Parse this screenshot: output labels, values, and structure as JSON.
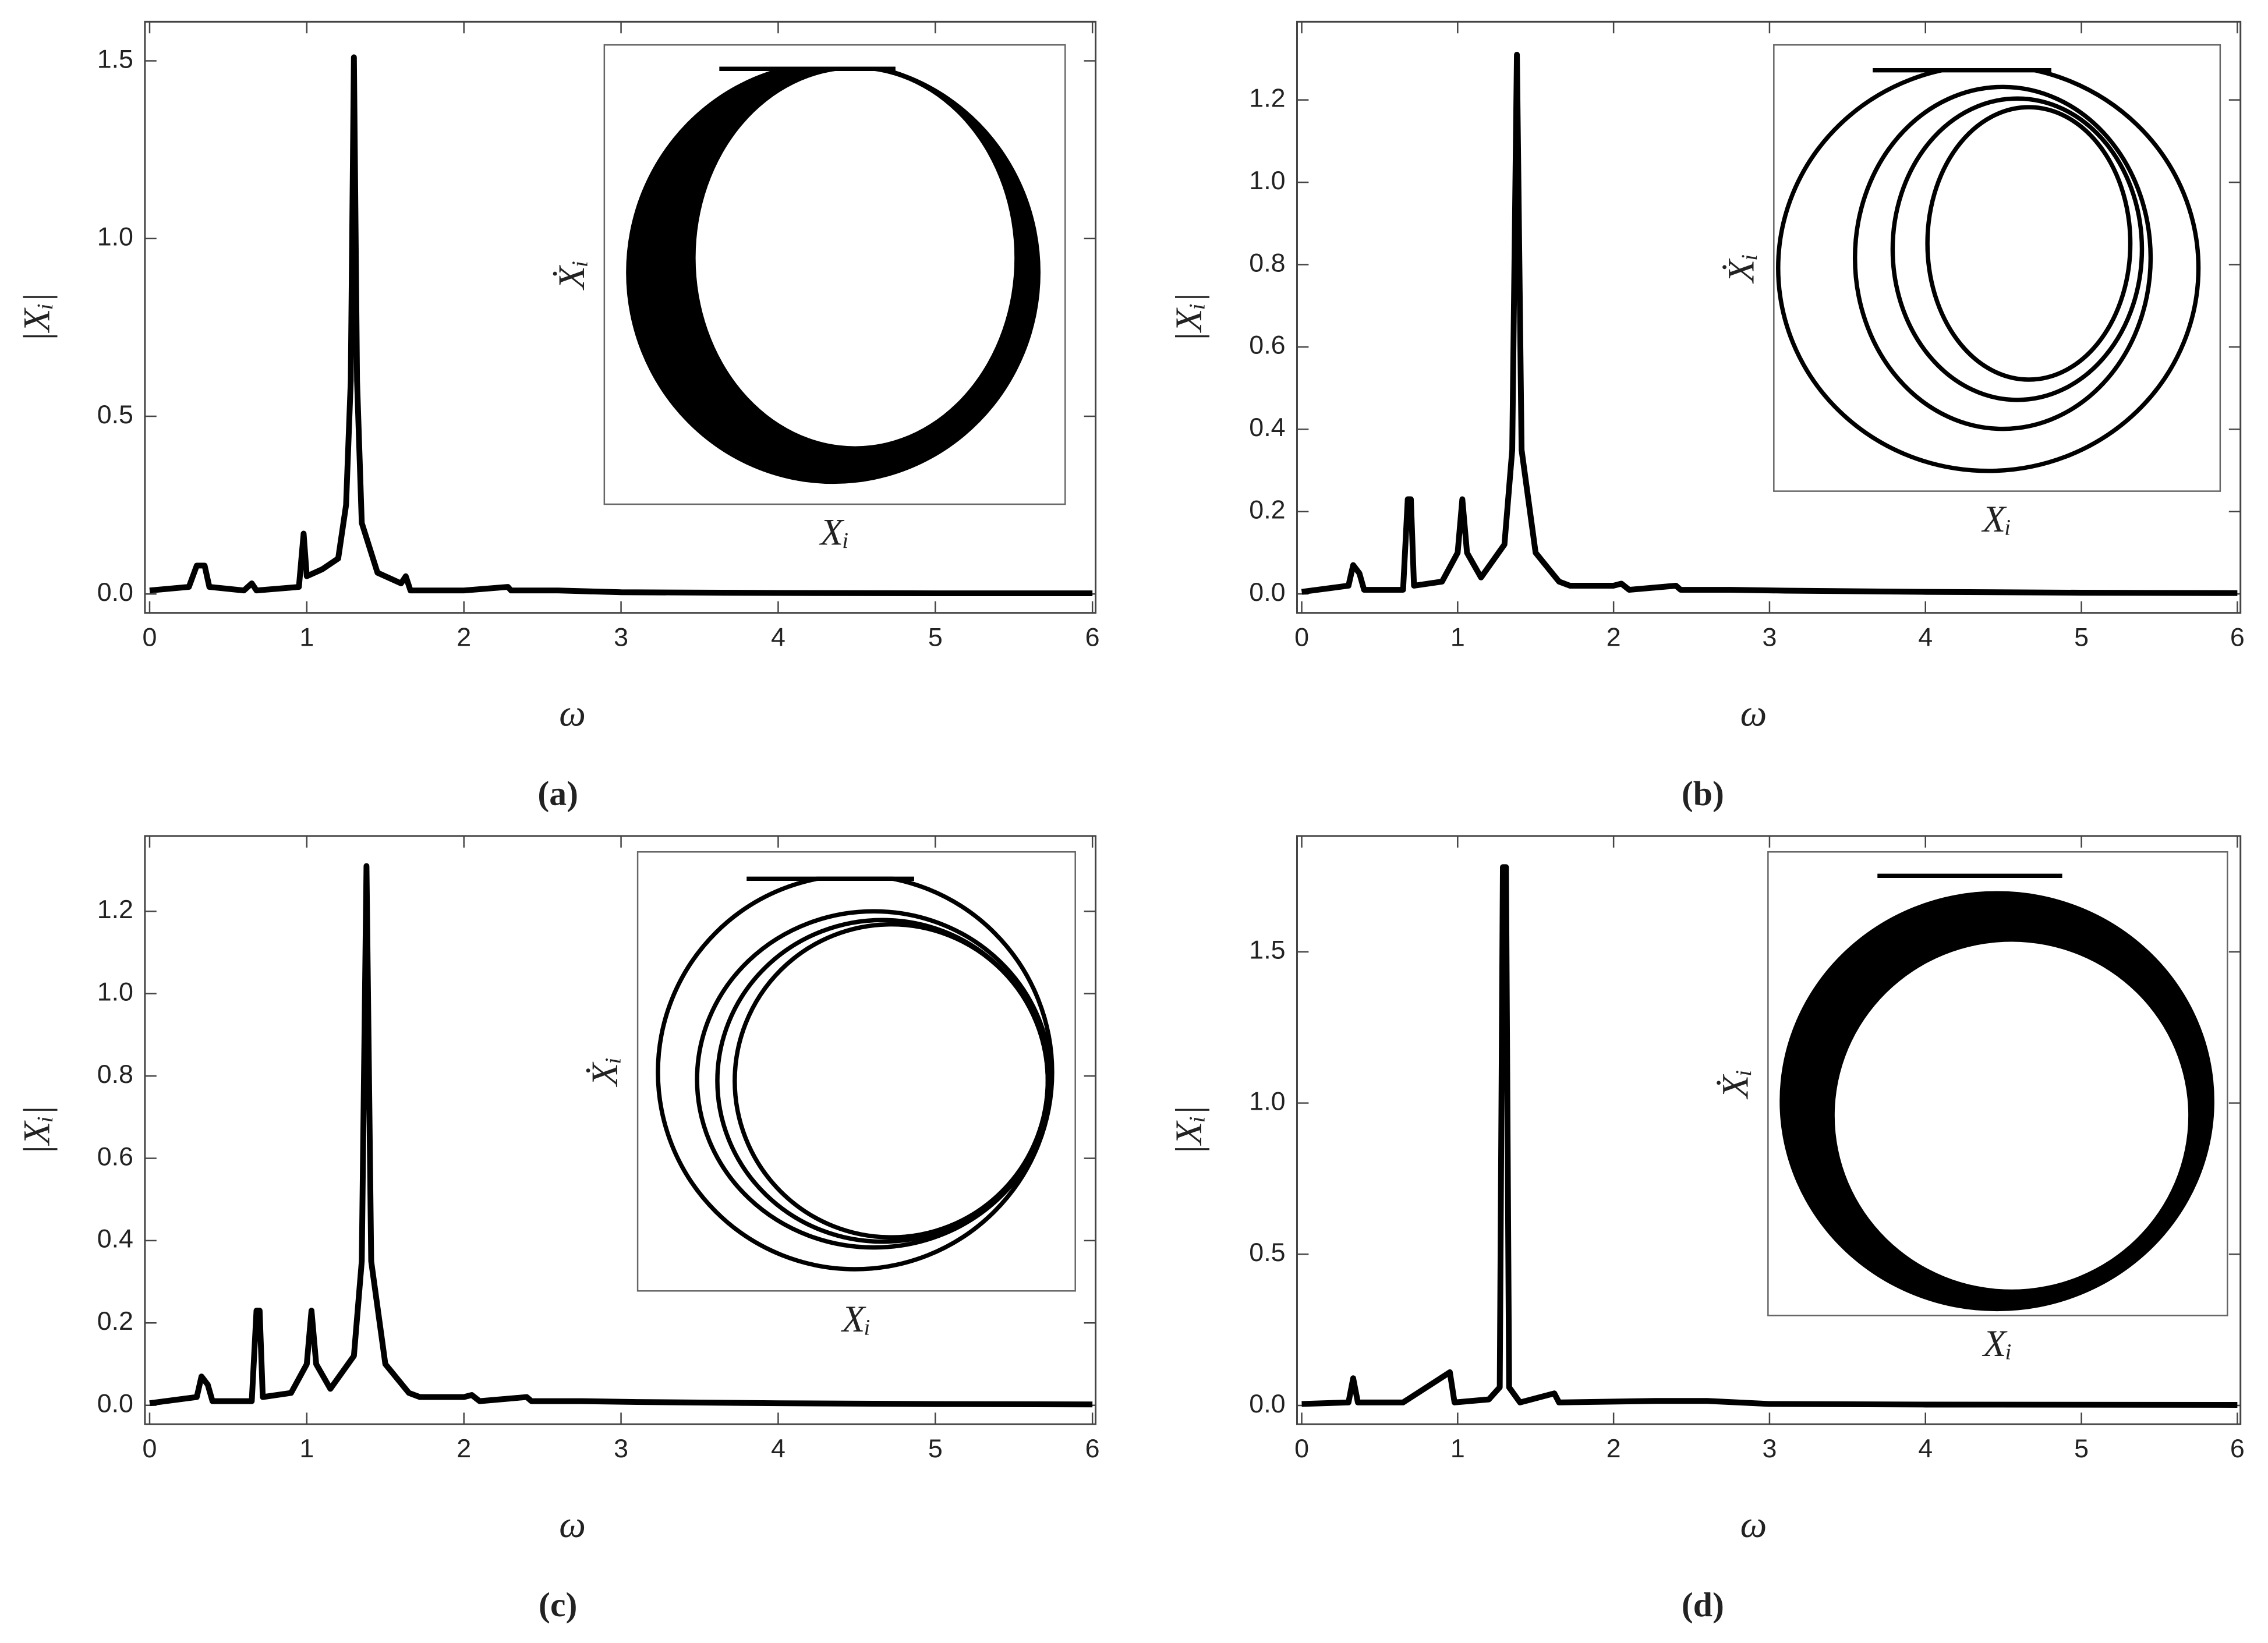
{
  "chart_data": [
    {
      "type": "line",
      "caption": "(a)",
      "xlabel": "ω",
      "ylabel": "|Xᵢ|",
      "color": "#000000",
      "inset": {
        "xlabel": "Xᵢ",
        "ylabel": "Ẋᵢ"
      },
      "x": [
        0,
        0.25,
        0.3,
        0.35,
        0.38,
        0.6,
        0.65,
        0.68,
        0.95,
        0.98,
        1.0,
        1.1,
        1.2,
        1.25,
        1.28,
        1.3,
        1.32,
        1.35,
        1.45,
        1.6,
        1.63,
        1.66,
        2.0,
        2.28,
        2.3,
        2.6,
        3.0,
        4.0,
        5.0,
        6.0
      ],
      "values": [
        0.01,
        0.02,
        0.08,
        0.08,
        0.02,
        0.01,
        0.03,
        0.01,
        0.02,
        0.17,
        0.05,
        0.07,
        0.1,
        0.25,
        0.6,
        1.51,
        0.6,
        0.2,
        0.06,
        0.03,
        0.05,
        0.01,
        0.01,
        0.02,
        0.01,
        0.01,
        0.005,
        0.003,
        0.002,
        0.002
      ],
      "xlim": [
        -0.03,
        6.02
      ],
      "ylim": [
        -0.053,
        1.61
      ],
      "xticks": [
        0,
        1,
        2,
        3,
        4,
        5,
        6
      ],
      "yticks": [
        {
          "value": 0,
          "label": "0.0"
        },
        0.5,
        {
          "value": 1,
          "label": "1.0"
        },
        1.5
      ]
    },
    {
      "type": "line",
      "caption": "(b)",
      "xlabel": "ω",
      "ylabel": "|Xᵢ|",
      "color": "#000000",
      "inset": {
        "xlabel": "Xᵢ",
        "ylabel": "Ẋᵢ"
      },
      "x": [
        0,
        0.3,
        0.33,
        0.37,
        0.4,
        0.65,
        0.68,
        0.7,
        0.72,
        0.9,
        1.0,
        1.03,
        1.06,
        1.15,
        1.3,
        1.35,
        1.38,
        1.41,
        1.5,
        1.65,
        1.72,
        2.0,
        2.05,
        2.1,
        2.4,
        2.43,
        2.75,
        3.1,
        4.0,
        5.0,
        6.0
      ],
      "values": [
        0.005,
        0.02,
        0.07,
        0.05,
        0.01,
        0.01,
        0.23,
        0.23,
        0.02,
        0.03,
        0.1,
        0.23,
        0.1,
        0.04,
        0.12,
        0.35,
        1.31,
        0.35,
        0.1,
        0.03,
        0.02,
        0.02,
        0.025,
        0.01,
        0.02,
        0.01,
        0.01,
        0.008,
        0.005,
        0.003,
        0.002
      ],
      "xlim": [
        -0.03,
        6.02
      ],
      "ylim": [
        -0.046,
        1.39
      ],
      "xticks": [
        0,
        1,
        2,
        3,
        4,
        5,
        6
      ],
      "yticks": [
        {
          "value": 0,
          "label": "0.0"
        },
        0.2,
        0.4,
        0.6,
        0.8,
        {
          "value": 1,
          "label": "1.0"
        },
        1.2
      ]
    },
    {
      "type": "line",
      "caption": "(c)",
      "xlabel": "ω",
      "ylabel": "|Xᵢ|",
      "color": "#000000",
      "inset": {
        "xlabel": "Xᵢ",
        "ylabel": "Ẋᵢ"
      },
      "x": [
        0,
        0.3,
        0.33,
        0.37,
        0.4,
        0.65,
        0.68,
        0.7,
        0.72,
        0.9,
        1.0,
        1.03,
        1.06,
        1.15,
        1.3,
        1.35,
        1.38,
        1.41,
        1.5,
        1.65,
        1.72,
        2.0,
        2.05,
        2.1,
        2.4,
        2.43,
        2.75,
        3.1,
        4.0,
        5.0,
        6.0
      ],
      "values": [
        0.005,
        0.02,
        0.07,
        0.05,
        0.01,
        0.01,
        0.23,
        0.23,
        0.02,
        0.03,
        0.1,
        0.23,
        0.1,
        0.04,
        0.12,
        0.35,
        1.31,
        0.35,
        0.1,
        0.03,
        0.02,
        0.02,
        0.025,
        0.01,
        0.02,
        0.01,
        0.01,
        0.008,
        0.005,
        0.003,
        0.002
      ],
      "xlim": [
        -0.03,
        6.02
      ],
      "ylim": [
        -0.046,
        1.383
      ],
      "xticks": [
        0,
        1,
        2,
        3,
        4,
        5,
        6
      ],
      "yticks": [
        {
          "value": 0,
          "label": "0.0"
        },
        0.2,
        0.4,
        0.6,
        0.8,
        {
          "value": 1,
          "label": "1.0"
        },
        1.2
      ]
    },
    {
      "type": "line",
      "caption": "(d)",
      "xlabel": "ω",
      "ylabel": "|Xᵢ|",
      "color": "#000000",
      "inset": {
        "xlabel": "Xᵢ",
        "ylabel": "Ẋᵢ"
      },
      "x": [
        0,
        0.3,
        0.33,
        0.36,
        0.65,
        0.95,
        0.98,
        1.2,
        1.27,
        1.29,
        1.31,
        1.33,
        1.4,
        1.62,
        1.65,
        2.27,
        2.6,
        3.0,
        4.0,
        6.0
      ],
      "values": [
        0.005,
        0.01,
        0.09,
        0.01,
        0.01,
        0.11,
        0.01,
        0.02,
        0.06,
        1.78,
        1.78,
        0.06,
        0.01,
        0.04,
        0.01,
        0.015,
        0.015,
        0.005,
        0.003,
        0.002
      ],
      "xlim": [
        -0.03,
        6.02
      ],
      "ylim": [
        -0.062,
        1.883
      ],
      "xticks": [
        0,
        1,
        2,
        3,
        4,
        5,
        6
      ],
      "yticks": [
        {
          "value": 0,
          "label": "0.0"
        },
        0.5,
        {
          "value": 1,
          "label": "1.0"
        },
        1.5
      ]
    }
  ]
}
